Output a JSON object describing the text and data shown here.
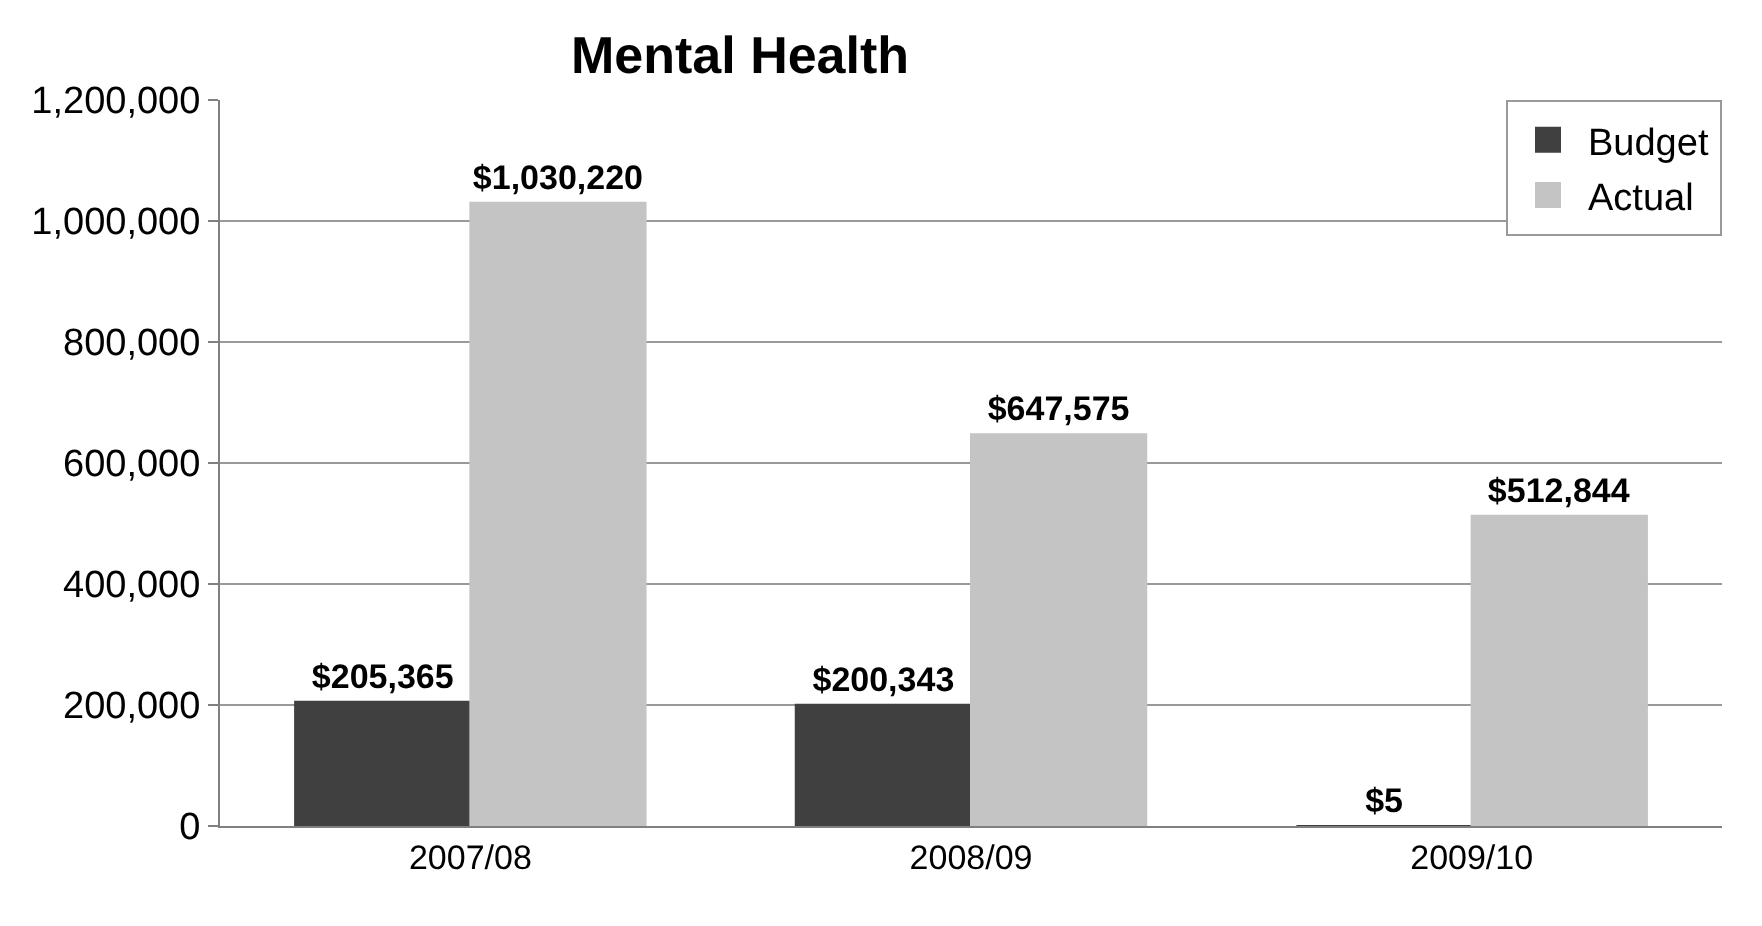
{
  "chart_data": {
    "type": "bar",
    "title": "Mental Health",
    "categories": [
      "2007/08",
      "2008/09",
      "2009/10"
    ],
    "series": [
      {
        "name": "Budget",
        "color": "#404040",
        "values": [
          205365,
          200343,
          5
        ],
        "value_labels": [
          "$205,365",
          "$200,343",
          "$5"
        ]
      },
      {
        "name": "Actual",
        "color": "#c4c4c4",
        "values": [
          1030220,
          647575,
          512844
        ],
        "value_labels": [
          "$1,030,220",
          "$647,575",
          "$512,844"
        ]
      }
    ],
    "ylim": [
      0,
      1200000
    ],
    "yticks": [
      {
        "value": 0,
        "label": "0"
      },
      {
        "value": 200000,
        "label": "200,000"
      },
      {
        "value": 400000,
        "label": "400,000"
      },
      {
        "value": 600000,
        "label": "600,000"
      },
      {
        "value": 800000,
        "label": "800,000"
      },
      {
        "value": 1000000,
        "label": "1,000,000"
      },
      {
        "value": 1200000,
        "label": "1,200,000"
      }
    ],
    "grid": "y",
    "legend": "top right"
  }
}
